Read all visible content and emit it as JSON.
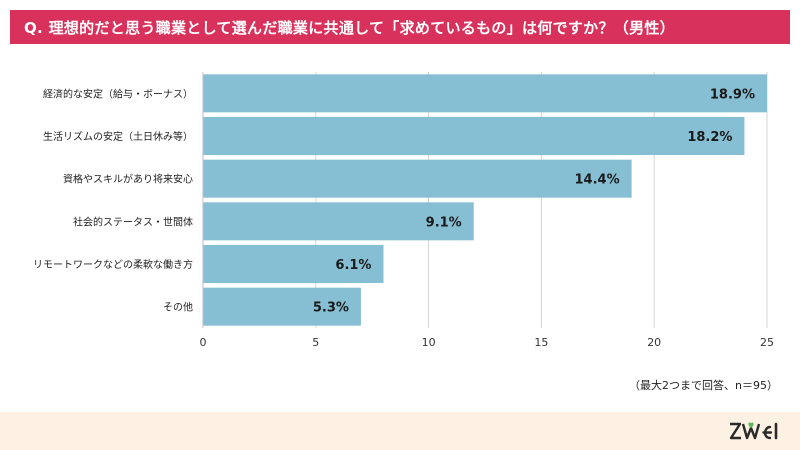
{
  "title": "Q. 理想的だと思う職業として選んだ職業に共通して「求めているもの」は何ですか？（男性）",
  "note": "（最大2つまで回答、n＝95）",
  "brand": {
    "name": "ZWEI",
    "colors": {
      "bar": "#86bfd4",
      "title_bg": "#d8325c",
      "footer_bg": "#fdf1e4",
      "logo": "#2a2a2a",
      "logo_accent": "#5cb85c"
    }
  },
  "chart_data": {
    "type": "bar",
    "orientation": "horizontal",
    "categories": [
      "経済的な安定（給与・ボーナス）",
      "生活リズムの安定（土日休み等）",
      "資格やスキルがあり将来安心",
      "社会的ステータス・世間体",
      "リモートワークなどの柔軟な働き方",
      "その他"
    ],
    "values": [
      25,
      24,
      19,
      12,
      8,
      7
    ],
    "data_labels": [
      "18.9%",
      "18.2%",
      "14.4%",
      "9.1%",
      "6.1%",
      "5.3%"
    ],
    "xlim": [
      0,
      25
    ],
    "xticks": [
      0,
      5,
      10,
      15,
      20,
      25
    ],
    "grid": true,
    "legend": "none"
  }
}
